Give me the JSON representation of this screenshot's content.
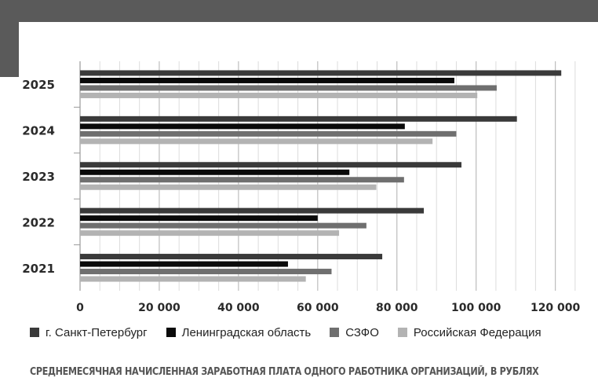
{
  "chart_data": {
    "type": "bar",
    "orientation": "horizontal",
    "categories": [
      "2025",
      "2024",
      "2023",
      "2022",
      "2021"
    ],
    "series": [
      {
        "name": "г. Санкт-Петербург",
        "color": "#3a3a3a",
        "values": [
          121500,
          110300,
          96300,
          86800,
          76300
        ]
      },
      {
        "name": "Ленинградская область",
        "color": "#0a0a0a",
        "values": [
          94500,
          82000,
          68000,
          60000,
          52500
        ]
      },
      {
        "name": "СЗФО",
        "color": "#6f6f6f",
        "values": [
          105200,
          95000,
          81800,
          72300,
          63500
        ]
      },
      {
        "name": "Российская Федерация",
        "color": "#b3b3b3",
        "values": [
          100300,
          89000,
          74800,
          65400,
          57000
        ]
      }
    ],
    "xlim": [
      0,
      128000
    ],
    "xticks": [
      "0",
      "20 000",
      "40 000",
      "60 000",
      "80 000",
      "100 000",
      "120 000"
    ],
    "xtick_values": [
      0,
      20000,
      40000,
      60000,
      80000,
      100000,
      120000
    ],
    "grid": true,
    "legend_position": "bottom",
    "caption": "СРЕДНЕМЕСЯЧНАЯ НАЧИСЛЕННАЯ ЗАРАБОТНАЯ ПЛАТА ОДНОГО РАБОТНИКА ОРГАНИЗАЦИЙ, В РУБЛЯХ"
  }
}
